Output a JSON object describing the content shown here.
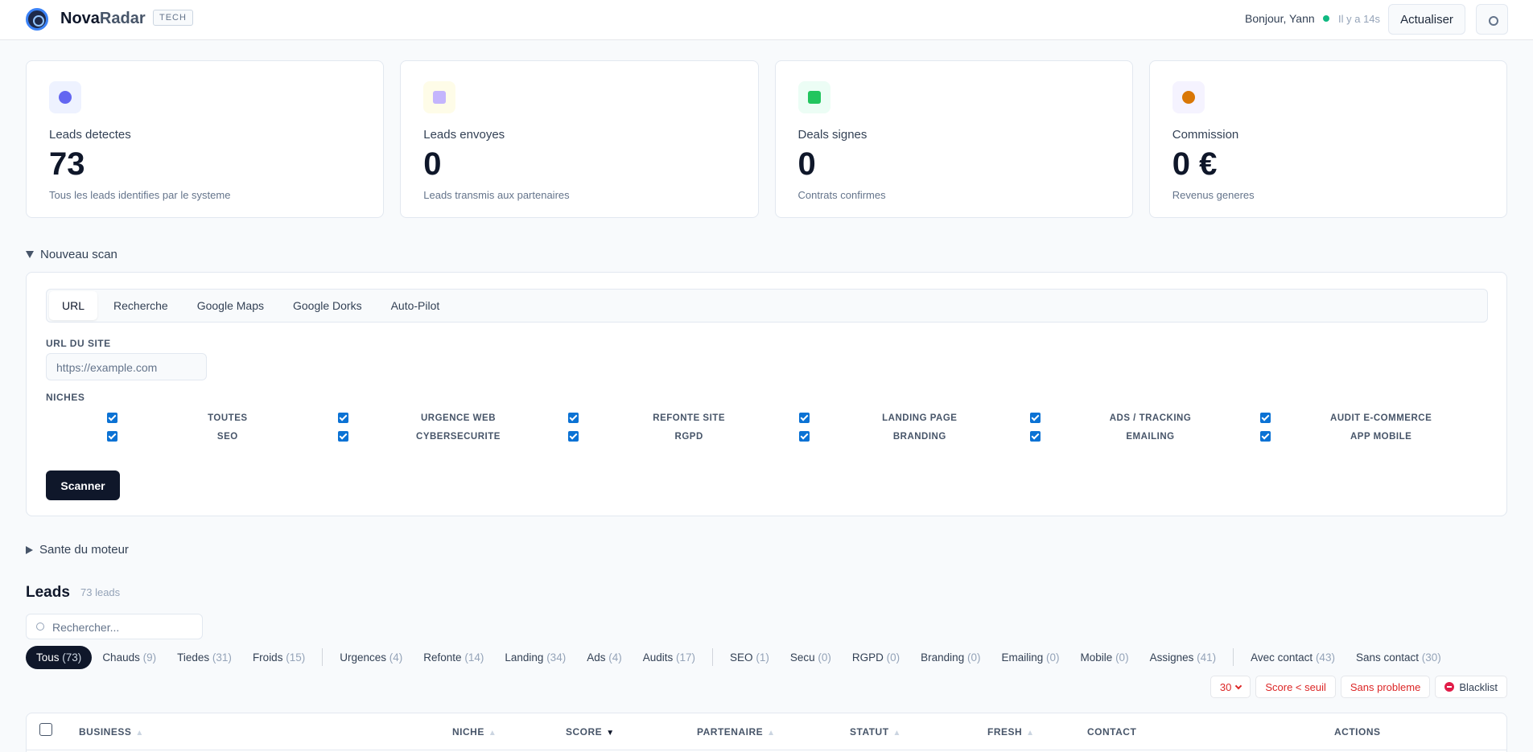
{
  "header": {
    "brand": {
      "primary": "Nova",
      "secondary": "Radar"
    },
    "badge": "TECH",
    "greeting": "Bonjour, Yann",
    "last_update": "Il y a 14s",
    "refresh_button": "Actualiser"
  },
  "stats": [
    {
      "label": "Leads detectes",
      "value": "73",
      "description": "Tous les leads identifies par le systeme"
    },
    {
      "label": "Leads envoyes",
      "value": "0",
      "description": "Leads transmis aux partenaires"
    },
    {
      "label": "Deals signes",
      "value": "0",
      "description": "Contrats confirmes"
    },
    {
      "label": "Commission",
      "value": "0 €",
      "description": "Revenus generes"
    }
  ],
  "scan": {
    "toggle": "Nouveau scan",
    "tabs": [
      "URL",
      "Recherche",
      "Google Maps",
      "Google Dorks",
      "Auto-Pilot"
    ],
    "url_label": "URL DU SITE",
    "url_placeholder": "https://example.com",
    "niches_label": "NICHES",
    "niches": [
      "TOUTES",
      "URGENCE WEB",
      "REFONTE SITE",
      "LANDING PAGE",
      "ADS / TRACKING",
      "AUDIT E-COMMERCE",
      "SEO",
      "CYBERSECURITE",
      "RGPD",
      "BRANDING",
      "EMAILING",
      "APP MOBILE"
    ],
    "button": "Scanner"
  },
  "health": {
    "toggle": "Sante du moteur"
  },
  "leads": {
    "title": "Leads",
    "count": "73 leads",
    "search_placeholder": "Rechercher...",
    "filter_groups": [
      [
        {
          "label": "Tous",
          "count": "(73)"
        },
        {
          "label": "Chauds",
          "count": "(9)"
        },
        {
          "label": "Tiedes",
          "count": "(31)"
        },
        {
          "label": "Froids",
          "count": "(15)"
        }
      ],
      [
        {
          "label": "Urgences",
          "count": "(4)"
        },
        {
          "label": "Refonte",
          "count": "(14)"
        },
        {
          "label": "Landing",
          "count": "(34)"
        },
        {
          "label": "Ads",
          "count": "(4)"
        },
        {
          "label": "Audits",
          "count": "(17)"
        }
      ],
      [
        {
          "label": "SEO",
          "count": "(1)"
        },
        {
          "label": "Secu",
          "count": "(0)"
        },
        {
          "label": "RGPD",
          "count": "(0)"
        },
        {
          "label": "Branding",
          "count": "(0)"
        },
        {
          "label": "Emailing",
          "count": "(0)"
        },
        {
          "label": "Mobile",
          "count": "(0)"
        },
        {
          "label": "Assignes",
          "count": "(41)"
        }
      ],
      [
        {
          "label": "Avec contact",
          "count": "(43)"
        },
        {
          "label": "Sans contact",
          "count": "(30)"
        }
      ]
    ],
    "page_size": "30",
    "actions": [
      "Score < seuil",
      "Sans probleme",
      "Blacklist"
    ],
    "columns": [
      {
        "label": "BUSINESS",
        "sort": "▲"
      },
      {
        "label": "NICHE",
        "sort": "▲"
      },
      {
        "label": "SCORE",
        "sort": "▼"
      },
      {
        "label": "PARTENAIRE",
        "sort": "▲"
      },
      {
        "label": "STATUT",
        "sort": "▲"
      },
      {
        "label": "FRESH",
        "sort": "▲"
      },
      {
        "label": "CONTACT"
      },
      {
        "label": "ACTIONS"
      }
    ]
  }
}
